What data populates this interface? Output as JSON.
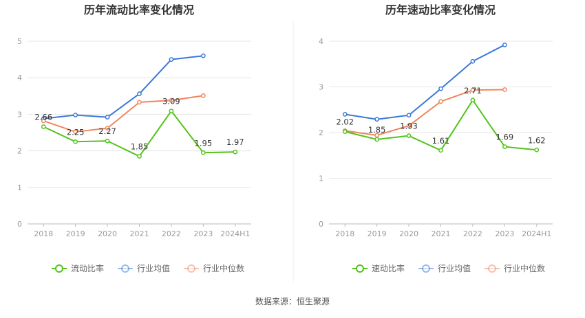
{
  "source": "数据来源：恒生聚源",
  "colors": {
    "main": "#52c41a",
    "avg": "#3a78d8",
    "median": "#f0865e",
    "grid": "#e6e6e6",
    "axis": "#999999",
    "label": "#333333",
    "title": "#333333"
  },
  "chart_data": [
    {
      "type": "line",
      "title": "历年流动比率变化情况",
      "categories": [
        "2018",
        "2019",
        "2020",
        "2021",
        "2022",
        "2023",
        "2024H1"
      ],
      "ylim": [
        0,
        5
      ],
      "yticks": [
        0,
        1,
        2,
        3,
        4,
        5
      ],
      "grid": true,
      "legend_position": "bottom",
      "series": [
        {
          "name": "流动比率",
          "role": "main",
          "values": [
            2.66,
            2.25,
            2.27,
            1.85,
            3.09,
            1.95,
            1.97
          ],
          "labels": [
            "2.66",
            "2.25",
            "2.27",
            "1.85",
            "3.09",
            "1.95",
            "1.97"
          ]
        },
        {
          "name": "行业均值",
          "role": "avg",
          "values": [
            2.88,
            2.98,
            2.92,
            3.56,
            4.5,
            4.6,
            null
          ]
        },
        {
          "name": "行业中位数",
          "role": "median",
          "values": [
            2.82,
            2.52,
            2.62,
            3.33,
            3.38,
            3.51,
            null
          ]
        }
      ]
    },
    {
      "type": "line",
      "title": "历年速动比率变化情况",
      "categories": [
        "2018",
        "2019",
        "2020",
        "2021",
        "2022",
        "2023",
        "2024H1"
      ],
      "ylim": [
        0,
        4
      ],
      "yticks": [
        0,
        1,
        2,
        3,
        4
      ],
      "grid": true,
      "legend_position": "bottom",
      "series": [
        {
          "name": "速动比率",
          "role": "main",
          "values": [
            2.02,
            1.85,
            1.93,
            1.61,
            2.71,
            1.69,
            1.62
          ],
          "labels": [
            "2.02",
            "1.85",
            "1.93",
            "1.61",
            "2.71",
            "1.69",
            "1.62"
          ]
        },
        {
          "name": "行业均值",
          "role": "avg",
          "values": [
            2.4,
            2.29,
            2.38,
            2.96,
            3.56,
            3.92,
            null
          ]
        },
        {
          "name": "行业中位数",
          "role": "median",
          "values": [
            2.04,
            1.94,
            2.15,
            2.68,
            2.93,
            2.94,
            null
          ]
        }
      ]
    }
  ]
}
